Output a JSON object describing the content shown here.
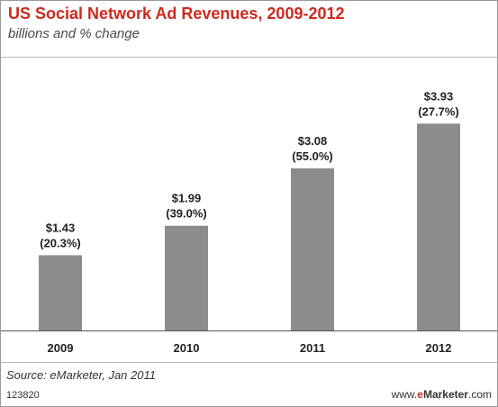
{
  "chart_data": {
    "type": "bar",
    "title": "US Social Network Ad Revenues, 2009-2012",
    "subtitle": "billions and % change",
    "categories": [
      "2009",
      "2010",
      "2011",
      "2012"
    ],
    "values": [
      1.43,
      1.99,
      3.08,
      3.93
    ],
    "data_labels": [
      "$1.43",
      "$1.99",
      "$3.08",
      "$3.93"
    ],
    "change_labels": [
      "(20.3%)",
      "(39.0%)",
      "(55.0%)",
      "(27.7%)"
    ],
    "ylim": [
      0,
      4.5
    ],
    "grid": false,
    "bar_color": "#8c8c8c",
    "title_color": "#cc2a1f"
  },
  "footer": {
    "source": "Source: eMarketer, Jan 2011",
    "chart_id": "123820",
    "brand_prefix": "www.",
    "brand_e": "e",
    "brand_name": "Marketer",
    "brand_suffix": ".com"
  }
}
